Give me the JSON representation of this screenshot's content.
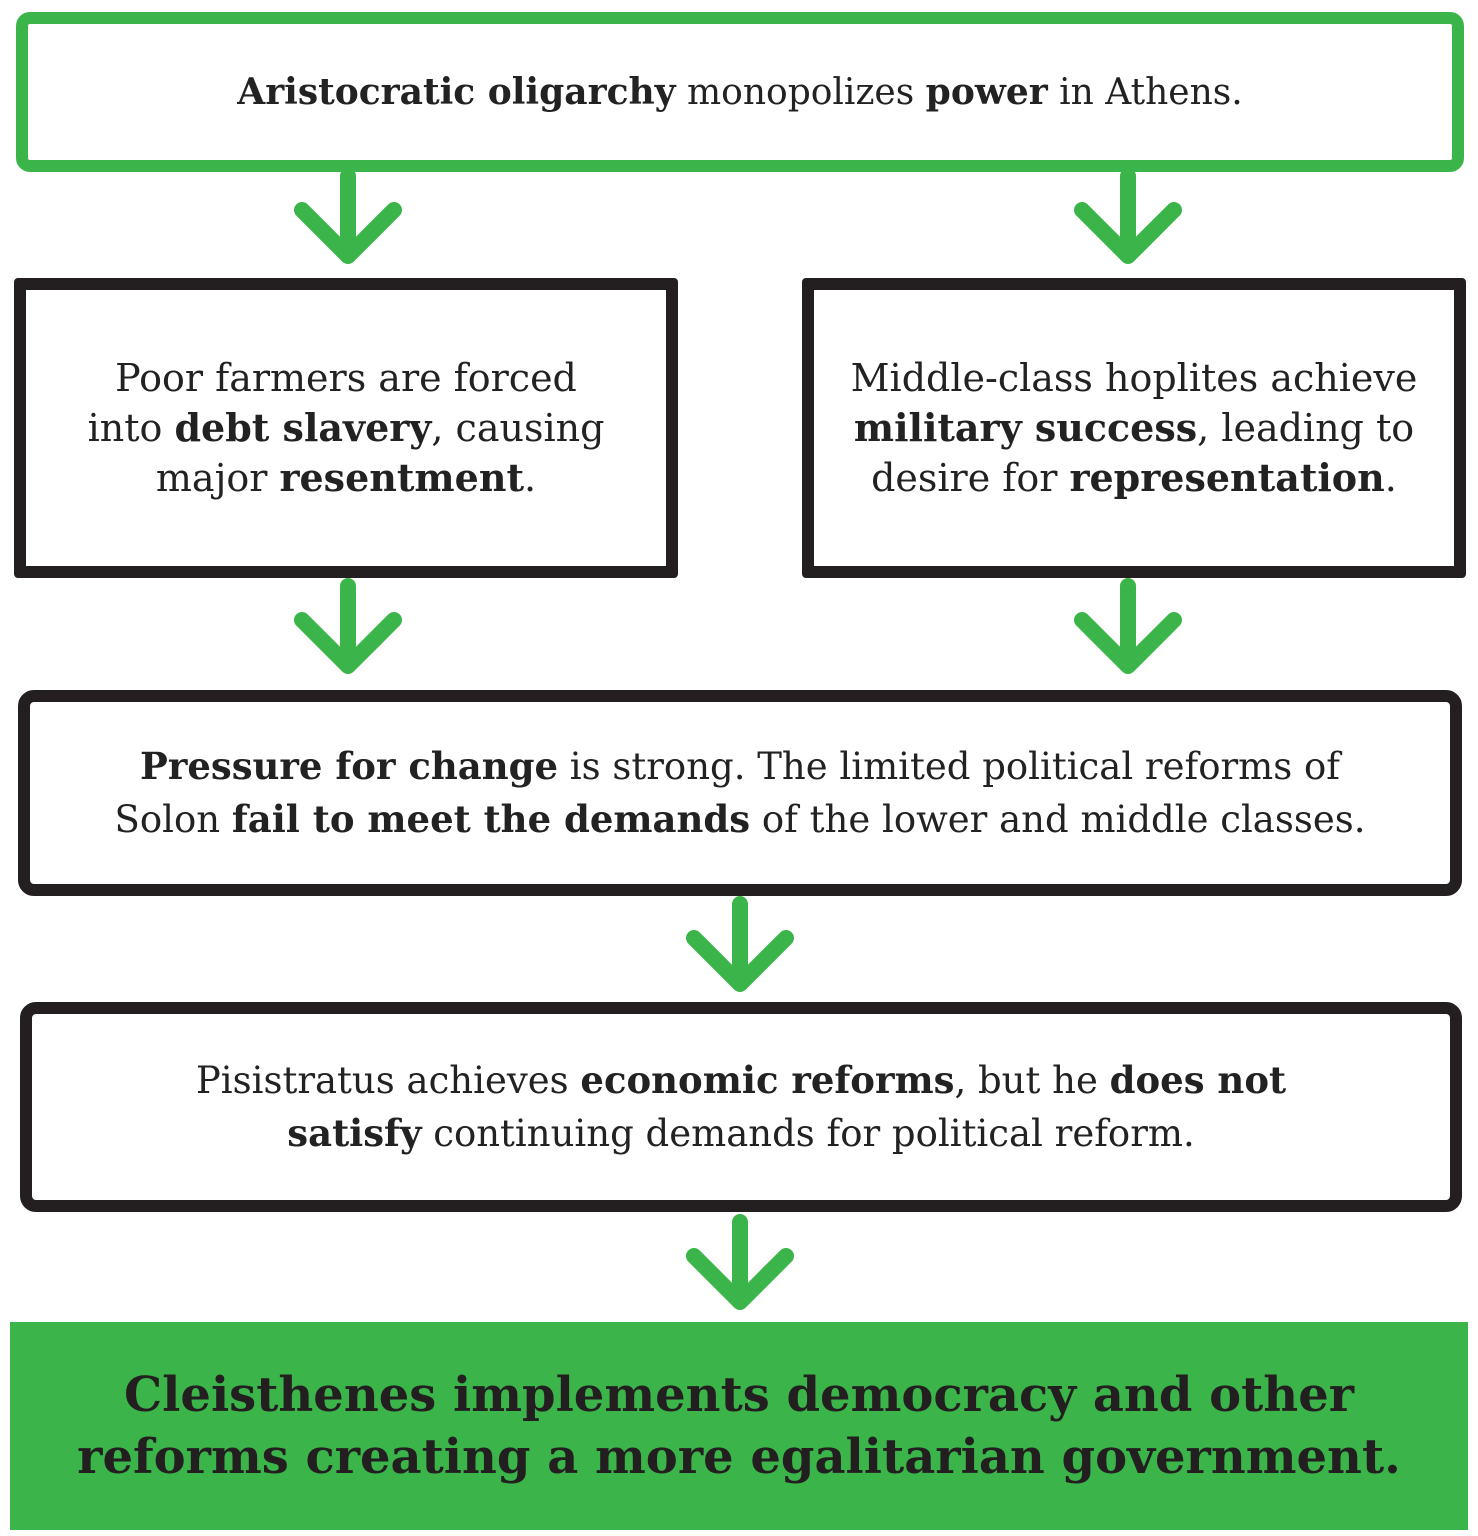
{
  "colors": {
    "green": "#3bb54a",
    "black": "#231f20"
  },
  "boxes": {
    "top": {
      "p1b": "Aristocratic oligarchy",
      "p2": " monopolizes ",
      "p3b": "power",
      "p4": " in Athens."
    },
    "left": {
      "l1": "Poor farmers are forced",
      "l2a": "into ",
      "l2b": "debt slavery",
      "l2c": ", causing",
      "l3a": "major ",
      "l3b": "resentment",
      "l3c": "."
    },
    "right": {
      "l1": "Middle-class hoplites achieve",
      "l2b": "military success",
      "l2c": ", leading to",
      "l3a": "desire for ",
      "l3b": "representation",
      "l3c": "."
    },
    "middle": {
      "l1b": "Pressure for change",
      "l1c": " is strong. The limited political reforms of",
      "l2a": "Solon ",
      "l2b": "fail to meet the demands",
      "l2c": " of the lower and middle classes."
    },
    "lower": {
      "l1a": "Pisistratus achieves ",
      "l1b": "economic reforms",
      "l1c": ", but he ",
      "l1d": "does not",
      "l2b": "satisfy",
      "l2c": " continuing demands for political reform."
    },
    "final": {
      "l1": "Cleisthenes implements democracy and other",
      "l2": "reforms creating a more egalitarian government."
    }
  }
}
